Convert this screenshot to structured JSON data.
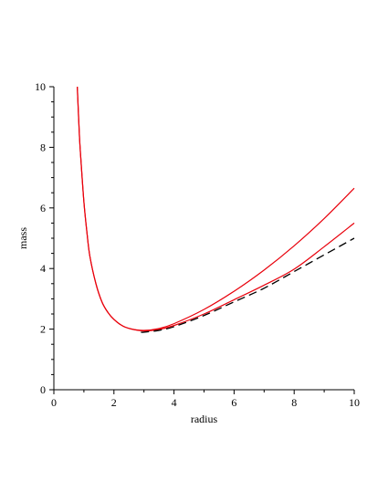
{
  "chart_data": {
    "type": "line",
    "title": "",
    "xlabel": "radius",
    "ylabel": "mass",
    "xlim": [
      0,
      10
    ],
    "ylim": [
      0,
      10
    ],
    "x_ticks": [
      0,
      2,
      4,
      6,
      8,
      10
    ],
    "y_ticks": [
      0,
      2,
      4,
      6,
      8,
      10
    ],
    "x_tick_labels": [
      "0",
      "2",
      "4",
      "6",
      "8",
      "10"
    ],
    "y_tick_labels": [
      "0",
      "2",
      "4",
      "6",
      "8",
      "10"
    ],
    "grid": false,
    "legend": "none",
    "series": [
      {
        "style": "solid",
        "color": "#e8000b",
        "x": [
          0.78,
          0.85,
          0.9,
          1.0,
          1.1,
          1.2,
          1.4,
          1.6,
          1.8,
          2.0,
          2.3,
          2.6,
          3.0,
          3.5,
          4.0,
          5.0,
          6.0,
          7.0,
          8.0,
          9.0,
          10.0
        ],
        "y": [
          10.0,
          8.4,
          7.6,
          6.2,
          5.2,
          4.4,
          3.5,
          2.9,
          2.55,
          2.32,
          2.1,
          2.0,
          1.96,
          2.02,
          2.18,
          2.65,
          3.25,
          3.95,
          4.75,
          5.65,
          6.65
        ]
      },
      {
        "style": "solid",
        "color": "#e8000b",
        "x": [
          0.78,
          0.85,
          0.9,
          1.0,
          1.1,
          1.2,
          1.4,
          1.6,
          1.8,
          2.0,
          2.3,
          2.6,
          3.0,
          3.5,
          4.0,
          5.0,
          6.0,
          7.0,
          8.0,
          9.0,
          10.0
        ],
        "y": [
          10.0,
          8.4,
          7.6,
          6.2,
          5.2,
          4.4,
          3.5,
          2.9,
          2.55,
          2.32,
          2.1,
          2.0,
          1.94,
          1.99,
          2.12,
          2.5,
          2.97,
          3.45,
          3.98,
          4.72,
          5.5
        ]
      },
      {
        "style": "dashed",
        "color": "#000000",
        "x": [
          2.9,
          3.0,
          3.5,
          4.0,
          5.0,
          6.0,
          7.0,
          8.0,
          9.0,
          10.0
        ],
        "y": [
          1.9,
          1.9,
          1.96,
          2.08,
          2.45,
          2.9,
          3.35,
          3.9,
          4.45,
          5.0
        ]
      }
    ]
  }
}
